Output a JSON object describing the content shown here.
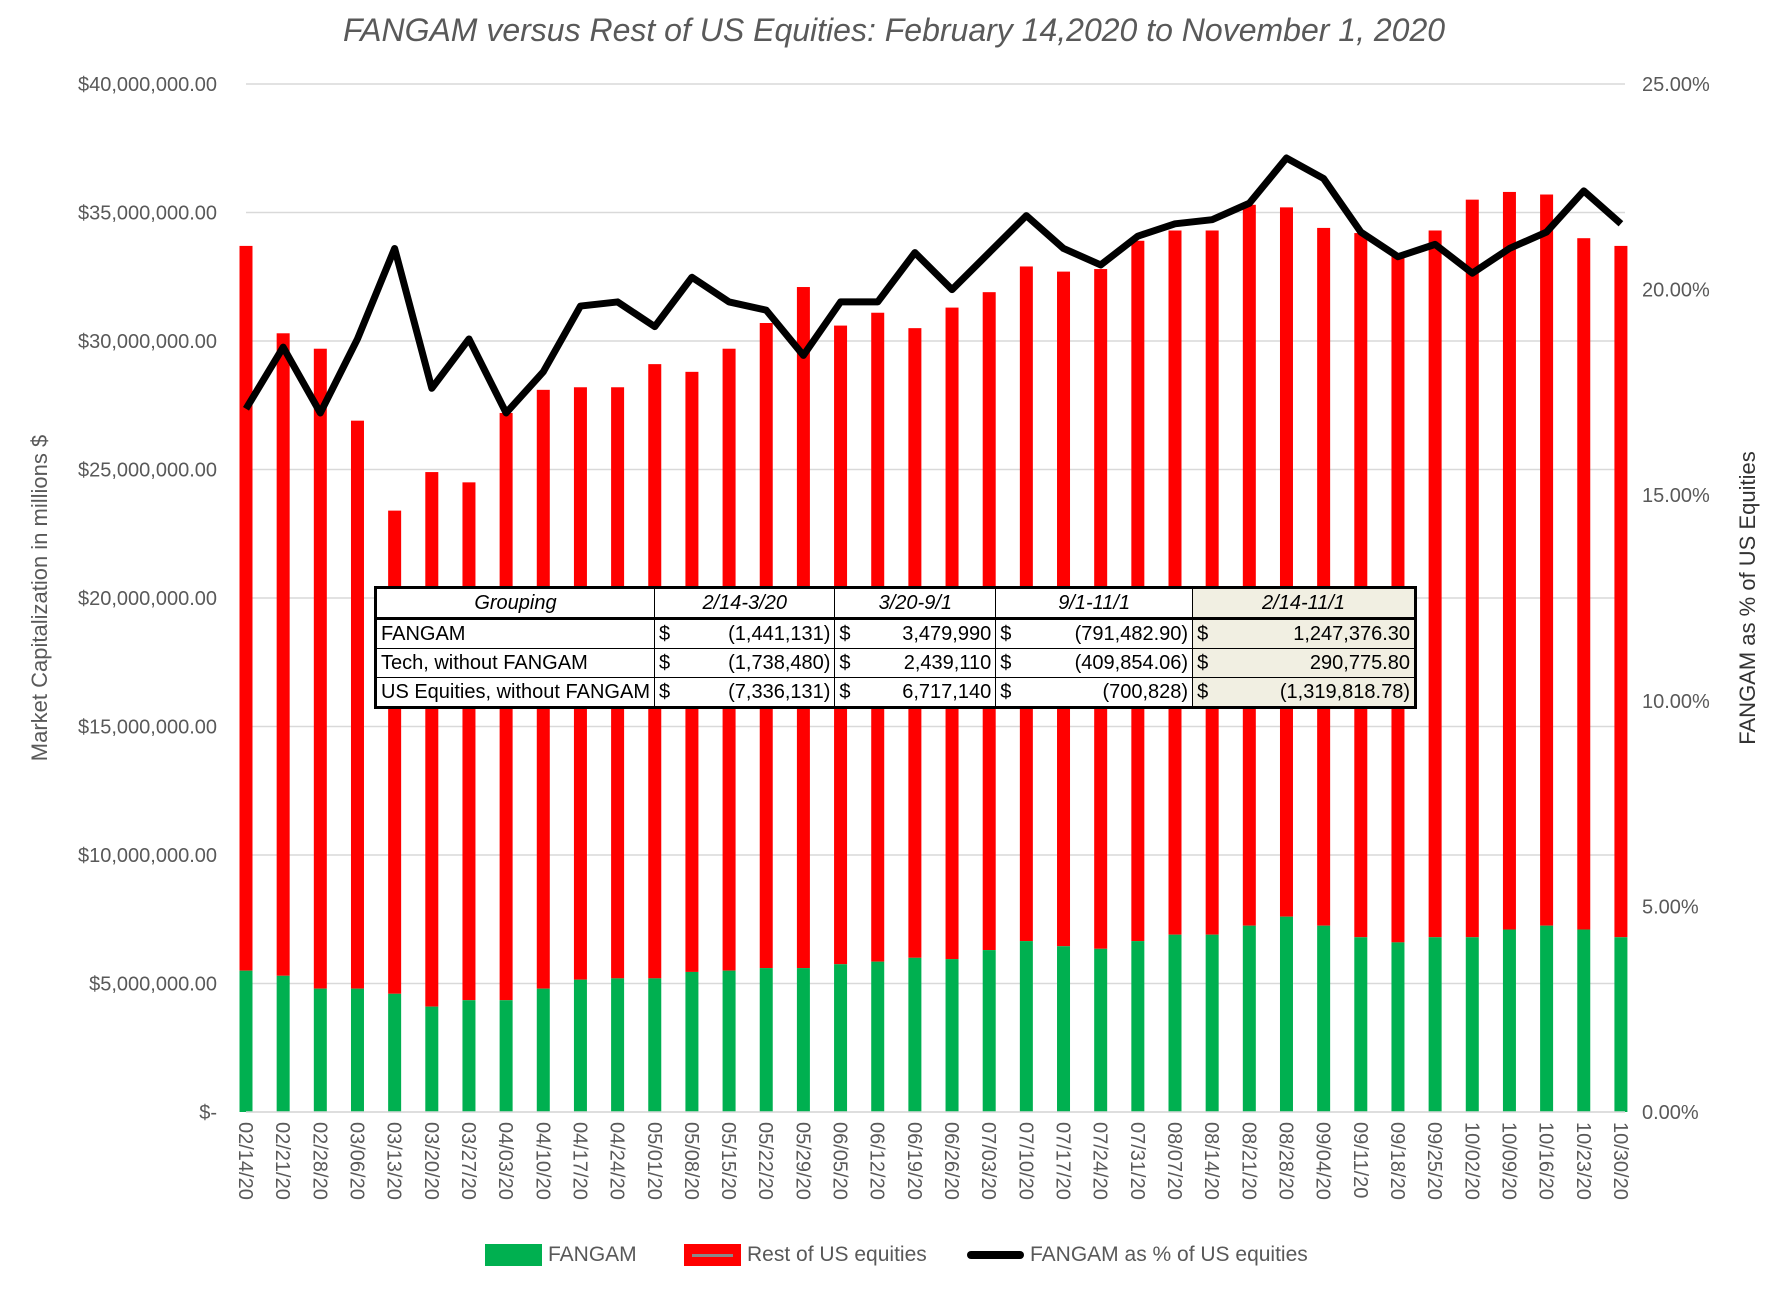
{
  "chart_data": {
    "type": "bar+line",
    "title": "FANGAM versus Rest of US Equities: February 14,2020  to November 1, 2020",
    "ylabel": "Market Capitalization in millions $",
    "y2label": "FANGAM as % of US Equities",
    "ylim": [
      0,
      40000000
    ],
    "y2lim": [
      0,
      25
    ],
    "yticks": [
      "$-",
      "$5,000,000.00",
      "$10,000,000.00",
      "$15,000,000.00",
      "$20,000,000.00",
      "$25,000,000.00",
      "$30,000,000.00",
      "$35,000,000.00",
      "$40,000,000.00"
    ],
    "y2ticks": [
      "0.00%",
      "5.00%",
      "10.00%",
      "15.00%",
      "20.00%",
      "25.00%"
    ],
    "grid": true,
    "legend_position": "bottom",
    "categories": [
      "02/14/20",
      "02/21/20",
      "02/28/20",
      "03/06/20",
      "03/13/20",
      "03/20/20",
      "03/27/20",
      "04/03/20",
      "04/10/20",
      "04/17/20",
      "04/24/20",
      "05/01/20",
      "05/08/20",
      "05/15/20",
      "05/22/20",
      "05/29/20",
      "06/05/20",
      "06/12/20",
      "06/19/20",
      "06/26/20",
      "07/03/20",
      "07/10/20",
      "07/17/20",
      "07/24/20",
      "07/31/20",
      "08/07/20",
      "08/14/20",
      "08/21/20",
      "08/28/20",
      "09/04/20",
      "09/11/20",
      "09/18/20",
      "09/25/20",
      "10/02/20",
      "10/09/20",
      "10/16/20",
      "10/23/20",
      "10/30/20"
    ],
    "series": [
      {
        "name": "FANGAM",
        "type": "stacked-bar",
        "color": "#00b050",
        "values": [
          5500000,
          5300000,
          4800000,
          4800000,
          4600000,
          4100000,
          4350000,
          4350000,
          4800000,
          5150000,
          5200000,
          5200000,
          5450000,
          5500000,
          5600000,
          5600000,
          5750000,
          5850000,
          6000000,
          5950000,
          6300000,
          6650000,
          6450000,
          6350000,
          6650000,
          6900000,
          6900000,
          7250000,
          7600000,
          7250000,
          6800000,
          6600000,
          6800000,
          6800000,
          7100000,
          7250000,
          7100000,
          6800000
        ]
      },
      {
        "name": "Rest of US equities",
        "type": "stacked-bar",
        "color": "#ff0000",
        "values": [
          28200000,
          25000000,
          24900000,
          22100000,
          18800000,
          20800000,
          20150000,
          22850000,
          23300000,
          23050000,
          23000000,
          23900000,
          23350000,
          24200000,
          25100000,
          26500000,
          24850000,
          25250000,
          24500000,
          25350000,
          25600000,
          26250000,
          26250000,
          26450000,
          27250000,
          27400000,
          27400000,
          28050000,
          27600000,
          27150000,
          27400000,
          26700000,
          27500000,
          28700000,
          28700000,
          28450000,
          26900000,
          26900000
        ]
      },
      {
        "name": "FANGAM as % of US equities",
        "type": "line",
        "axis": "right",
        "color": "#000000",
        "values": [
          17.1,
          18.6,
          17.0,
          18.8,
          21.0,
          17.6,
          18.8,
          17.0,
          18.0,
          19.6,
          19.7,
          19.1,
          20.3,
          19.7,
          19.5,
          18.4,
          19.7,
          19.7,
          20.9,
          20.0,
          20.9,
          21.8,
          21.0,
          20.6,
          21.3,
          21.6,
          21.7,
          22.1,
          23.2,
          22.7,
          21.4,
          20.8,
          21.1,
          20.4,
          21.0,
          21.4,
          22.4,
          21.6
        ]
      }
    ]
  },
  "table": {
    "headers": [
      "Grouping",
      "2/14-3/20",
      "3/20-9/1",
      "9/1-11/1",
      "2/14-11/1"
    ],
    "currency": "$",
    "rows": [
      {
        "label": "FANGAM",
        "values": [
          "(1,441,131)",
          "3,479,990",
          "(791,482.90)",
          "1,247,376.30"
        ]
      },
      {
        "label": "Tech, without FANGAM",
        "values": [
          "(1,738,480)",
          "2,439,110",
          "(409,854.06)",
          "290,775.80"
        ]
      },
      {
        "label": "US Equities, without FANGAM",
        "values": [
          "(7,336,131)",
          "6,717,140",
          "(700,828)",
          "(1,319,818.78)"
        ]
      }
    ]
  }
}
